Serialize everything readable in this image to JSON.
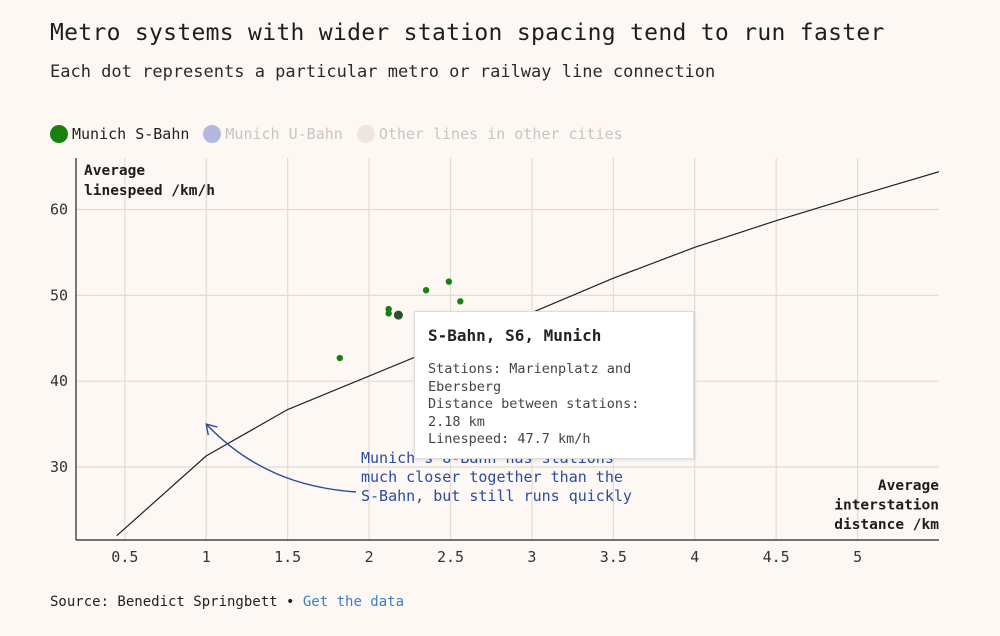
{
  "title": "Metro systems with wider station spacing tend to run faster",
  "subtitle": "Each dot represents a particular metro or railway line connection",
  "legend": [
    {
      "label": "Munich S-Bahn",
      "color": "#15820f",
      "state": "active"
    },
    {
      "label": "Munich U-Bahn",
      "color": "#b3b8dd",
      "state": "inactive"
    },
    {
      "label": "Other lines in other cities",
      "color": "#ece6e2",
      "state": "inactive"
    }
  ],
  "tooltip": {
    "title": "S-Bahn, S6, Munich",
    "lines": [
      "Stations: Marienplatz and",
      "Ebersberg",
      "Distance between stations:",
      "2.18 km",
      "Linespeed: 47.7 km/h"
    ]
  },
  "annotation": {
    "lines": [
      "Munich's U-Bahn has stations",
      "much closer together than the",
      "S-Bahn, but still runs quickly"
    ],
    "color": "#2a4ca0"
  },
  "source": {
    "text": "Source: Benedict Springbett •",
    "link": "Get the data"
  },
  "chart_data": {
    "type": "scatter",
    "xlabel": [
      "Average",
      "interstation",
      "distance /km"
    ],
    "ylabel": [
      "Average",
      "linespeed /km/h"
    ],
    "xlim": [
      0.2,
      5.5
    ],
    "ylim": [
      21.5,
      66
    ],
    "xticks": [
      0.5,
      1,
      1.5,
      2,
      2.5,
      3,
      3.5,
      4,
      4.5,
      5
    ],
    "xtick_labels": [
      "0.5",
      "1",
      "1.5",
      "2",
      "2.5",
      "3",
      "3.5",
      "4",
      "4.5",
      "5"
    ],
    "yticks": [
      30,
      40,
      50,
      60
    ],
    "ytick_labels": [
      "30",
      "40",
      "50",
      "60"
    ],
    "grid": true,
    "series": [
      {
        "name": "Munich S-Bahn",
        "color": "#15820f",
        "points": [
          [
            1.82,
            42.7
          ],
          [
            2.12,
            48.4
          ],
          [
            2.12,
            47.9
          ],
          [
            2.35,
            50.6
          ],
          [
            2.49,
            51.6
          ],
          [
            2.56,
            49.3
          ],
          [
            2.18,
            47.7
          ]
        ]
      }
    ],
    "highlighted_point": [
      2.18,
      47.7
    ],
    "trend_curve": [
      [
        0.45,
        22.0
      ],
      [
        1.0,
        31.3
      ],
      [
        1.5,
        36.7
      ],
      [
        2.0,
        40.6
      ],
      [
        2.5,
        44.5
      ],
      [
        3.0,
        48.0
      ],
      [
        3.5,
        52.0
      ],
      [
        4.0,
        55.6
      ],
      [
        4.5,
        58.7
      ],
      [
        5.0,
        61.6
      ],
      [
        5.5,
        64.4
      ]
    ],
    "arrow_target": [
      1.0,
      35.0
    ]
  }
}
